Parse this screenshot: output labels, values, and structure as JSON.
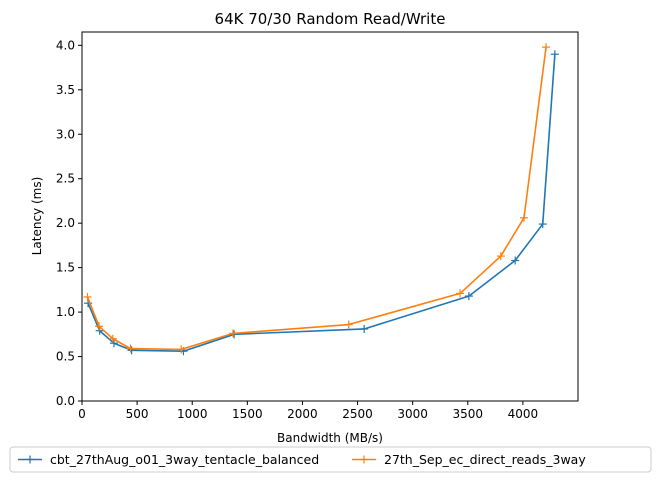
{
  "chart_data": {
    "type": "line",
    "title": "64K 70/30  Random Read/Write",
    "xlabel": "Bandwidth (MB/s)",
    "ylabel": "Latency (ms)",
    "xlim": [
      0,
      4500
    ],
    "ylim": [
      0,
      4.15
    ],
    "xticks": [
      0,
      500,
      1000,
      1500,
      2000,
      2500,
      3000,
      3500,
      4000
    ],
    "xtick_labels": [
      "0",
      "500",
      "1000",
      "1500",
      "2000",
      "2500",
      "3000",
      "3500",
      "4000"
    ],
    "yticks": [
      0.0,
      0.5,
      1.0,
      1.5,
      2.0,
      2.5,
      3.0,
      3.5,
      4.0
    ],
    "ytick_labels": [
      "0.0",
      "0.5",
      "1.0",
      "1.5",
      "2.0",
      "2.5",
      "3.0",
      "3.5",
      "4.0"
    ],
    "grid": false,
    "legend_position": "bottom",
    "marker": "+",
    "series": [
      {
        "name": "cbt_27thAug_o01_3way_tentacle_balanced",
        "color": "#1f77b4",
        "x": [
          55,
          160,
          290,
          450,
          920,
          1380,
          2560,
          3510,
          3930,
          4180,
          4290
        ],
        "y": [
          1.1,
          0.79,
          0.65,
          0.57,
          0.56,
          0.75,
          0.81,
          1.18,
          1.58,
          1.99,
          3.9
        ]
      },
      {
        "name": "27th_Sep_ec_direct_reads_3way",
        "color": "#ff7f0e",
        "x": [
          50,
          155,
          280,
          440,
          900,
          1370,
          2420,
          3430,
          3800,
          4010,
          4210
        ],
        "y": [
          1.17,
          0.84,
          0.7,
          0.59,
          0.58,
          0.76,
          0.86,
          1.21,
          1.63,
          2.06,
          3.98
        ]
      }
    ]
  }
}
